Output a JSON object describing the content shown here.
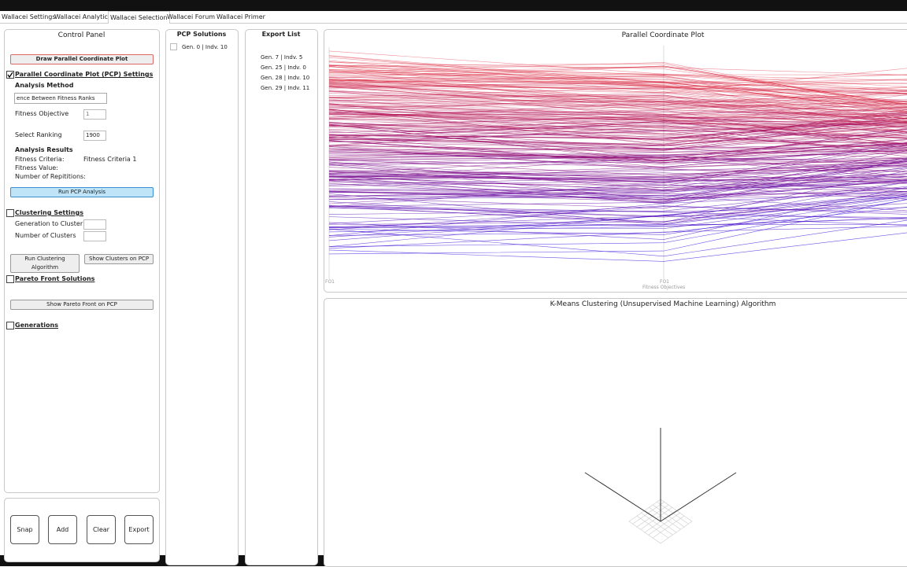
{
  "tabs": [
    "Wallacei Settings",
    "Wallacei Analytics",
    "Wallacei Selection",
    "Wallacei Forum",
    "Wallacei Primer"
  ],
  "control_panel": {
    "title": "Control Panel",
    "draw_button": "Draw Parallel Coordinate Plot",
    "pcp_settings": "Parallel Coordinate Plot (PCP) Settings",
    "analysis_method": "Analysis Method",
    "method_dropdown": "ence Between Fitness Ranks",
    "fitness_objective_label": "Fitness Objective",
    "fitness_objective_value": "1",
    "select_ranking_label": "Select Ranking",
    "select_ranking_value": "1900",
    "analysis_results": "Analysis Results",
    "fitness_criteria_label": "Fitness Criteria:",
    "fitness_criteria_value": "Fitness Criteria 1",
    "fitness_value_label": "Fitness Value:",
    "repetitions_label": "Number of Repititions:",
    "run_pcp_button": "Run PCP Analysis",
    "clustering_settings": "Clustering Settings",
    "generation_to_cluster": "Generation to Cluster",
    "number_of_clusters": "Number of Clusters",
    "run_clustering_button": "Run Clustering Algorithm",
    "show_clusters_button": "Show Clusters on PCP",
    "pareto_front": "Pareto Front Solutions",
    "show_pareto_button": "Show Pareto Front on PCP",
    "generations": "Generations"
  },
  "actions": [
    "Snap",
    "Add",
    "Clear",
    "Export"
  ],
  "pcp_solutions": {
    "title": "PCP Solutions",
    "items": [
      "Gen. 0 | Indv. 10"
    ]
  },
  "export_list": {
    "title": "Export List",
    "items": [
      "Gen. 7 | Indv. 5",
      "Gen. 25 | Indv. 0",
      "Gen. 28 | Indv. 10",
      "Gen. 29 | Indv. 11"
    ]
  },
  "pcp_plot": {
    "title": "Parallel Coordinate Plot",
    "axis_labels": [
      "FO1",
      "FO1"
    ],
    "x_label": "Fitness Objectives"
  },
  "clustering_plot": {
    "title": "K-Means Clustering (Unsupervised Machine Learning) Algorithm"
  }
}
